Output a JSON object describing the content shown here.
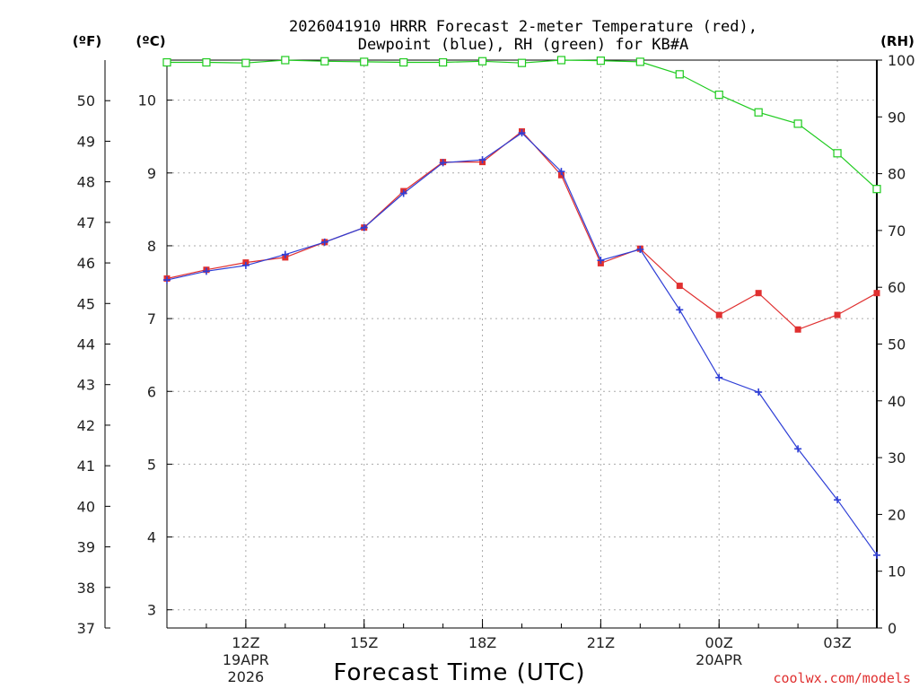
{
  "chart_data": {
    "type": "line",
    "title": [
      "2026041910 HRRR Forecast 2-meter Temperature (red),",
      "Dewpoint (blue), RH (green) for KB#A"
    ],
    "xlabel": "Forecast Time (UTC)",
    "credit": "coolwx.com/models",
    "units": {
      "fahrenheit": "(ºF)",
      "celsius": "(ºC)",
      "rh": "(RH)"
    },
    "x_hours": [
      10,
      11,
      12,
      13,
      14,
      15,
      16,
      17,
      18,
      19,
      20,
      21,
      22,
      23,
      24,
      25,
      26,
      27,
      28
    ],
    "x_range": [
      10,
      28
    ],
    "x_ticks": [
      {
        "hour": 12,
        "label": "12Z",
        "sub": [
          "19APR",
          "2026"
        ]
      },
      {
        "hour": 15,
        "label": "15Z",
        "sub": []
      },
      {
        "hour": 18,
        "label": "18Z",
        "sub": []
      },
      {
        "hour": 21,
        "label": "21Z",
        "sub": []
      },
      {
        "hour": 24,
        "label": "00Z",
        "sub": [
          "20APR"
        ]
      },
      {
        "hour": 27,
        "label": "03Z",
        "sub": []
      }
    ],
    "y_celsius": {
      "range": [
        2.75,
        10.55
      ],
      "ticks": [
        "3",
        "4",
        "5",
        "6",
        "7",
        "8",
        "9",
        "10"
      ]
    },
    "y_fahrenheit": {
      "range": [
        37,
        51.0
      ],
      "ticks": [
        "37",
        "38",
        "39",
        "40",
        "41",
        "42",
        "43",
        "44",
        "45",
        "46",
        "47",
        "48",
        "49",
        "50"
      ]
    },
    "y_rh": {
      "range": [
        0,
        100
      ],
      "ticks": [
        "0",
        "10",
        "20",
        "30",
        "40",
        "50",
        "60",
        "70",
        "80",
        "90",
        "100"
      ]
    },
    "series": [
      {
        "name": "Temperature",
        "unit": "C",
        "color": "#e03030",
        "marker": "square-filled",
        "values": [
          7.55,
          7.67,
          7.77,
          7.84,
          8.05,
          8.25,
          8.75,
          9.15,
          9.15,
          9.57,
          8.97,
          7.76,
          7.96,
          7.45,
          7.05,
          7.35,
          6.85,
          7.05,
          7.35
        ]
      },
      {
        "name": "Dewpoint",
        "unit": "C",
        "color": "#2f3fd6",
        "marker": "plus",
        "values": [
          7.53,
          7.65,
          7.73,
          7.88,
          8.05,
          8.25,
          8.72,
          9.14,
          9.18,
          9.55,
          9.02,
          7.8,
          7.95,
          7.12,
          6.19,
          5.99,
          5.21,
          4.51,
          3.75
        ]
      },
      {
        "name": "Relative Humidity",
        "unit": "%",
        "color": "#1ecb1e",
        "marker": "square-open",
        "values": [
          99.6,
          99.6,
          99.5,
          100,
          99.8,
          99.7,
          99.6,
          99.6,
          99.8,
          99.5,
          100,
          99.9,
          99.7,
          97.5,
          93.9,
          90.8,
          88.8,
          83.6,
          77.3
        ]
      }
    ]
  }
}
